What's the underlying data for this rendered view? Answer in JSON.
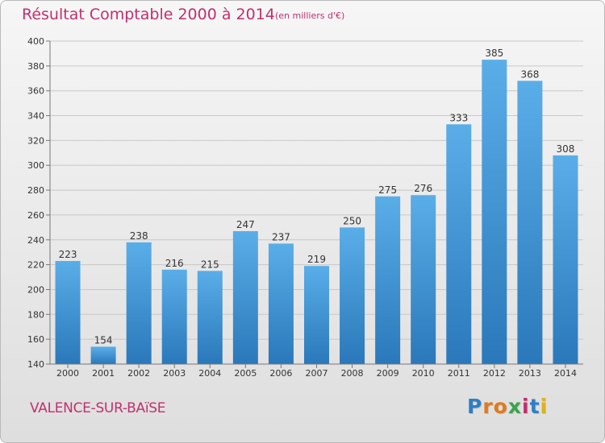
{
  "title": "Résultat Comptable 2000 à 2014",
  "subtitle": "(en milliers d'€)",
  "city": "VALENCE-SUR-BAïSE",
  "logo": {
    "letters": [
      "P",
      "r",
      "o",
      "x",
      "i",
      "t",
      "i"
    ],
    "colors": [
      "#2f7fc1",
      "#e07b1a",
      "#e07b1a",
      "#3aa34a",
      "#c0306f",
      "#2f7fc1",
      "#e0b21a"
    ]
  },
  "colors": {
    "title": "#c0306f",
    "bar_light": "#5aaee8",
    "bar_dark": "#2a78ba",
    "grid": "#c8c8c8"
  },
  "chart_data": {
    "type": "bar",
    "categories": [
      "2000",
      "2001",
      "2002",
      "2003",
      "2004",
      "2005",
      "2006",
      "2007",
      "2008",
      "2009",
      "2010",
      "2011",
      "2012",
      "2013",
      "2014"
    ],
    "values": [
      223,
      154,
      238,
      216,
      215,
      247,
      237,
      219,
      250,
      275,
      276,
      333,
      385,
      368,
      308
    ],
    "data_labels": [
      "223",
      "154",
      "238",
      "216",
      "215",
      "247",
      "237",
      "219",
      "250",
      "275",
      "276",
      "333",
      "385",
      "368",
      "308"
    ],
    "yticks": [
      "140",
      "160",
      "180",
      "200",
      "220",
      "240",
      "260",
      "280",
      "300",
      "320",
      "340",
      "360",
      "380",
      "400"
    ],
    "ylim": [
      140,
      400
    ],
    "grid": true,
    "legend": "none"
  }
}
